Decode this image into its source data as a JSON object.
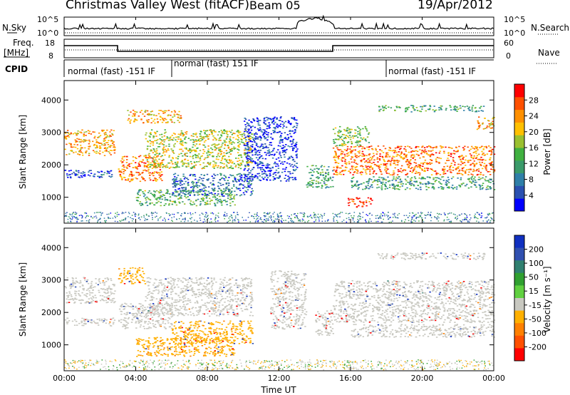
{
  "header": {
    "title": "Christmas Valley West (fitACF)",
    "beam": "Beam 05",
    "date": "19/Apr/2012"
  },
  "left_labels": {
    "nsky": "N.Sky",
    "freq_line1": "Freq.",
    "freq_line2": "[MHz]",
    "cpid": "CPID"
  },
  "right_labels": {
    "nsearch": "N.Search",
    "nave": "Nave"
  },
  "noise_axis": {
    "left_ticks": [
      "10^5",
      "10^0"
    ],
    "right_ticks": [
      "10^5",
      "10^0"
    ]
  },
  "freq_axis": {
    "left_ticks": [
      "18",
      "8"
    ],
    "right_ticks": [
      "60",
      "0"
    ]
  },
  "cpid_segments": [
    {
      "label": "normal (fast) -151 IF",
      "start_h": 0,
      "end_h": 6
    },
    {
      "label": "normal (fast) 151 IF",
      "start_h": 6,
      "end_h": 18
    },
    {
      "label": "normal (fast) -151 IF",
      "start_h": 18,
      "end_h": 24
    }
  ],
  "x_axis": {
    "label": "Time UT",
    "ticks": [
      "00:00",
      "04:00",
      "08:00",
      "12:00",
      "16:00",
      "20:00",
      "00:00"
    ],
    "range_h": [
      0,
      24
    ]
  },
  "power_colorbar": {
    "label": "Power [dB]",
    "ticks": [
      "4",
      "8",
      "12",
      "16",
      "20",
      "24",
      "28"
    ],
    "colors": [
      "#0000ff",
      "#2a50b0",
      "#2f7fa8",
      "#3a9a6a",
      "#40b040",
      "#9ac030",
      "#ffc000",
      "#ff9000",
      "#ff5000",
      "#ff0000"
    ]
  },
  "velocity_colorbar": {
    "label": "Velocity [m s⁻¹]",
    "ticks": [
      "200",
      "100",
      "50",
      "15",
      "-15",
      "-50",
      "-100",
      "-200"
    ],
    "colors": [
      "#1030c0",
      "#3050b0",
      "#308070",
      "#30a030",
      "#60d040",
      "#c8c8c0",
      "#ffb000",
      "#ff8000",
      "#ff5000",
      "#ff0000"
    ]
  },
  "chart_data": [
    {
      "type": "heatmap",
      "ylabel": "Slant Range [km]",
      "yticks": [
        "1000",
        "2000",
        "3000",
        "4000"
      ],
      "ylim": [
        200,
        4600
      ],
      "xlim_hours": [
        0,
        24
      ],
      "bands": [
        {
          "t0": 0.0,
          "t1": 2.8,
          "r0": 2300,
          "r1": 3100,
          "value": 22
        },
        {
          "t0": 0.0,
          "t1": 2.8,
          "r0": 1600,
          "r1": 1850,
          "value": 6
        },
        {
          "t0": 3.0,
          "t1": 5.5,
          "r0": 1500,
          "r1": 2300,
          "value": 24
        },
        {
          "t0": 3.5,
          "t1": 6.5,
          "r0": 3300,
          "r1": 3700,
          "value": 22
        },
        {
          "t0": 4.5,
          "t1": 10.5,
          "r0": 1900,
          "r1": 3100,
          "value": 18
        },
        {
          "t0": 4.0,
          "t1": 9.5,
          "r0": 750,
          "r1": 1250,
          "value": 14
        },
        {
          "t0": 6.0,
          "t1": 10.5,
          "r0": 1050,
          "r1": 1750,
          "value": 8
        },
        {
          "t0": 10.0,
          "t1": 13.0,
          "r0": 1500,
          "r1": 3500,
          "value": 5
        },
        {
          "t0": 13.5,
          "t1": 15.0,
          "r0": 1300,
          "r1": 2000,
          "value": 12
        },
        {
          "t0": 15.0,
          "t1": 24.0,
          "r0": 1700,
          "r1": 2600,
          "value": 24
        },
        {
          "t0": 15.0,
          "t1": 17.0,
          "r0": 2600,
          "r1": 3200,
          "value": 16
        },
        {
          "t0": 15.8,
          "t1": 17.2,
          "r0": 700,
          "r1": 1000,
          "value": 28
        },
        {
          "t0": 16.0,
          "t1": 24.0,
          "r0": 1250,
          "r1": 1650,
          "value": 12
        },
        {
          "t0": 17.5,
          "t1": 23.5,
          "r0": 3650,
          "r1": 3850,
          "value": 13
        },
        {
          "t0": 23.0,
          "t1": 24.0,
          "r0": 3100,
          "r1": 3500,
          "value": 22
        }
      ]
    },
    {
      "type": "heatmap",
      "ylabel": "Slant Range [km]",
      "yticks": [
        "1000",
        "2000",
        "3000",
        "4000"
      ],
      "ylim": [
        200,
        4600
      ],
      "xlim_hours": [
        0,
        24
      ],
      "bands": [
        {
          "t0": 0.0,
          "t1": 2.8,
          "r0": 2300,
          "r1": 3100,
          "value": 0
        },
        {
          "t0": 0.0,
          "t1": 2.8,
          "r0": 1600,
          "r1": 1850,
          "value": 0
        },
        {
          "t0": 3.0,
          "t1": 4.5,
          "r0": 2900,
          "r1": 3400,
          "value": -40
        },
        {
          "t0": 3.0,
          "t1": 6.0,
          "r0": 1500,
          "r1": 2300,
          "value": 0
        },
        {
          "t0": 4.5,
          "t1": 10.5,
          "r0": 1900,
          "r1": 3100,
          "value": 0
        },
        {
          "t0": 4.0,
          "t1": 9.5,
          "r0": 650,
          "r1": 1250,
          "value": -40
        },
        {
          "t0": 6.0,
          "t1": 10.5,
          "r0": 1050,
          "r1": 1750,
          "value": -40
        },
        {
          "t0": 11.5,
          "t1": 13.5,
          "r0": 1500,
          "r1": 3300,
          "value": 0
        },
        {
          "t0": 14.0,
          "t1": 15.0,
          "r0": 1300,
          "r1": 2100,
          "value": 0
        },
        {
          "t0": 15.0,
          "t1": 24.0,
          "r0": 1700,
          "r1": 3000,
          "value": 0
        },
        {
          "t0": 16.0,
          "t1": 24.0,
          "r0": 1250,
          "r1": 1650,
          "value": 0
        },
        {
          "t0": 17.5,
          "t1": 23.5,
          "r0": 3650,
          "r1": 3850,
          "value": 0
        }
      ]
    }
  ]
}
